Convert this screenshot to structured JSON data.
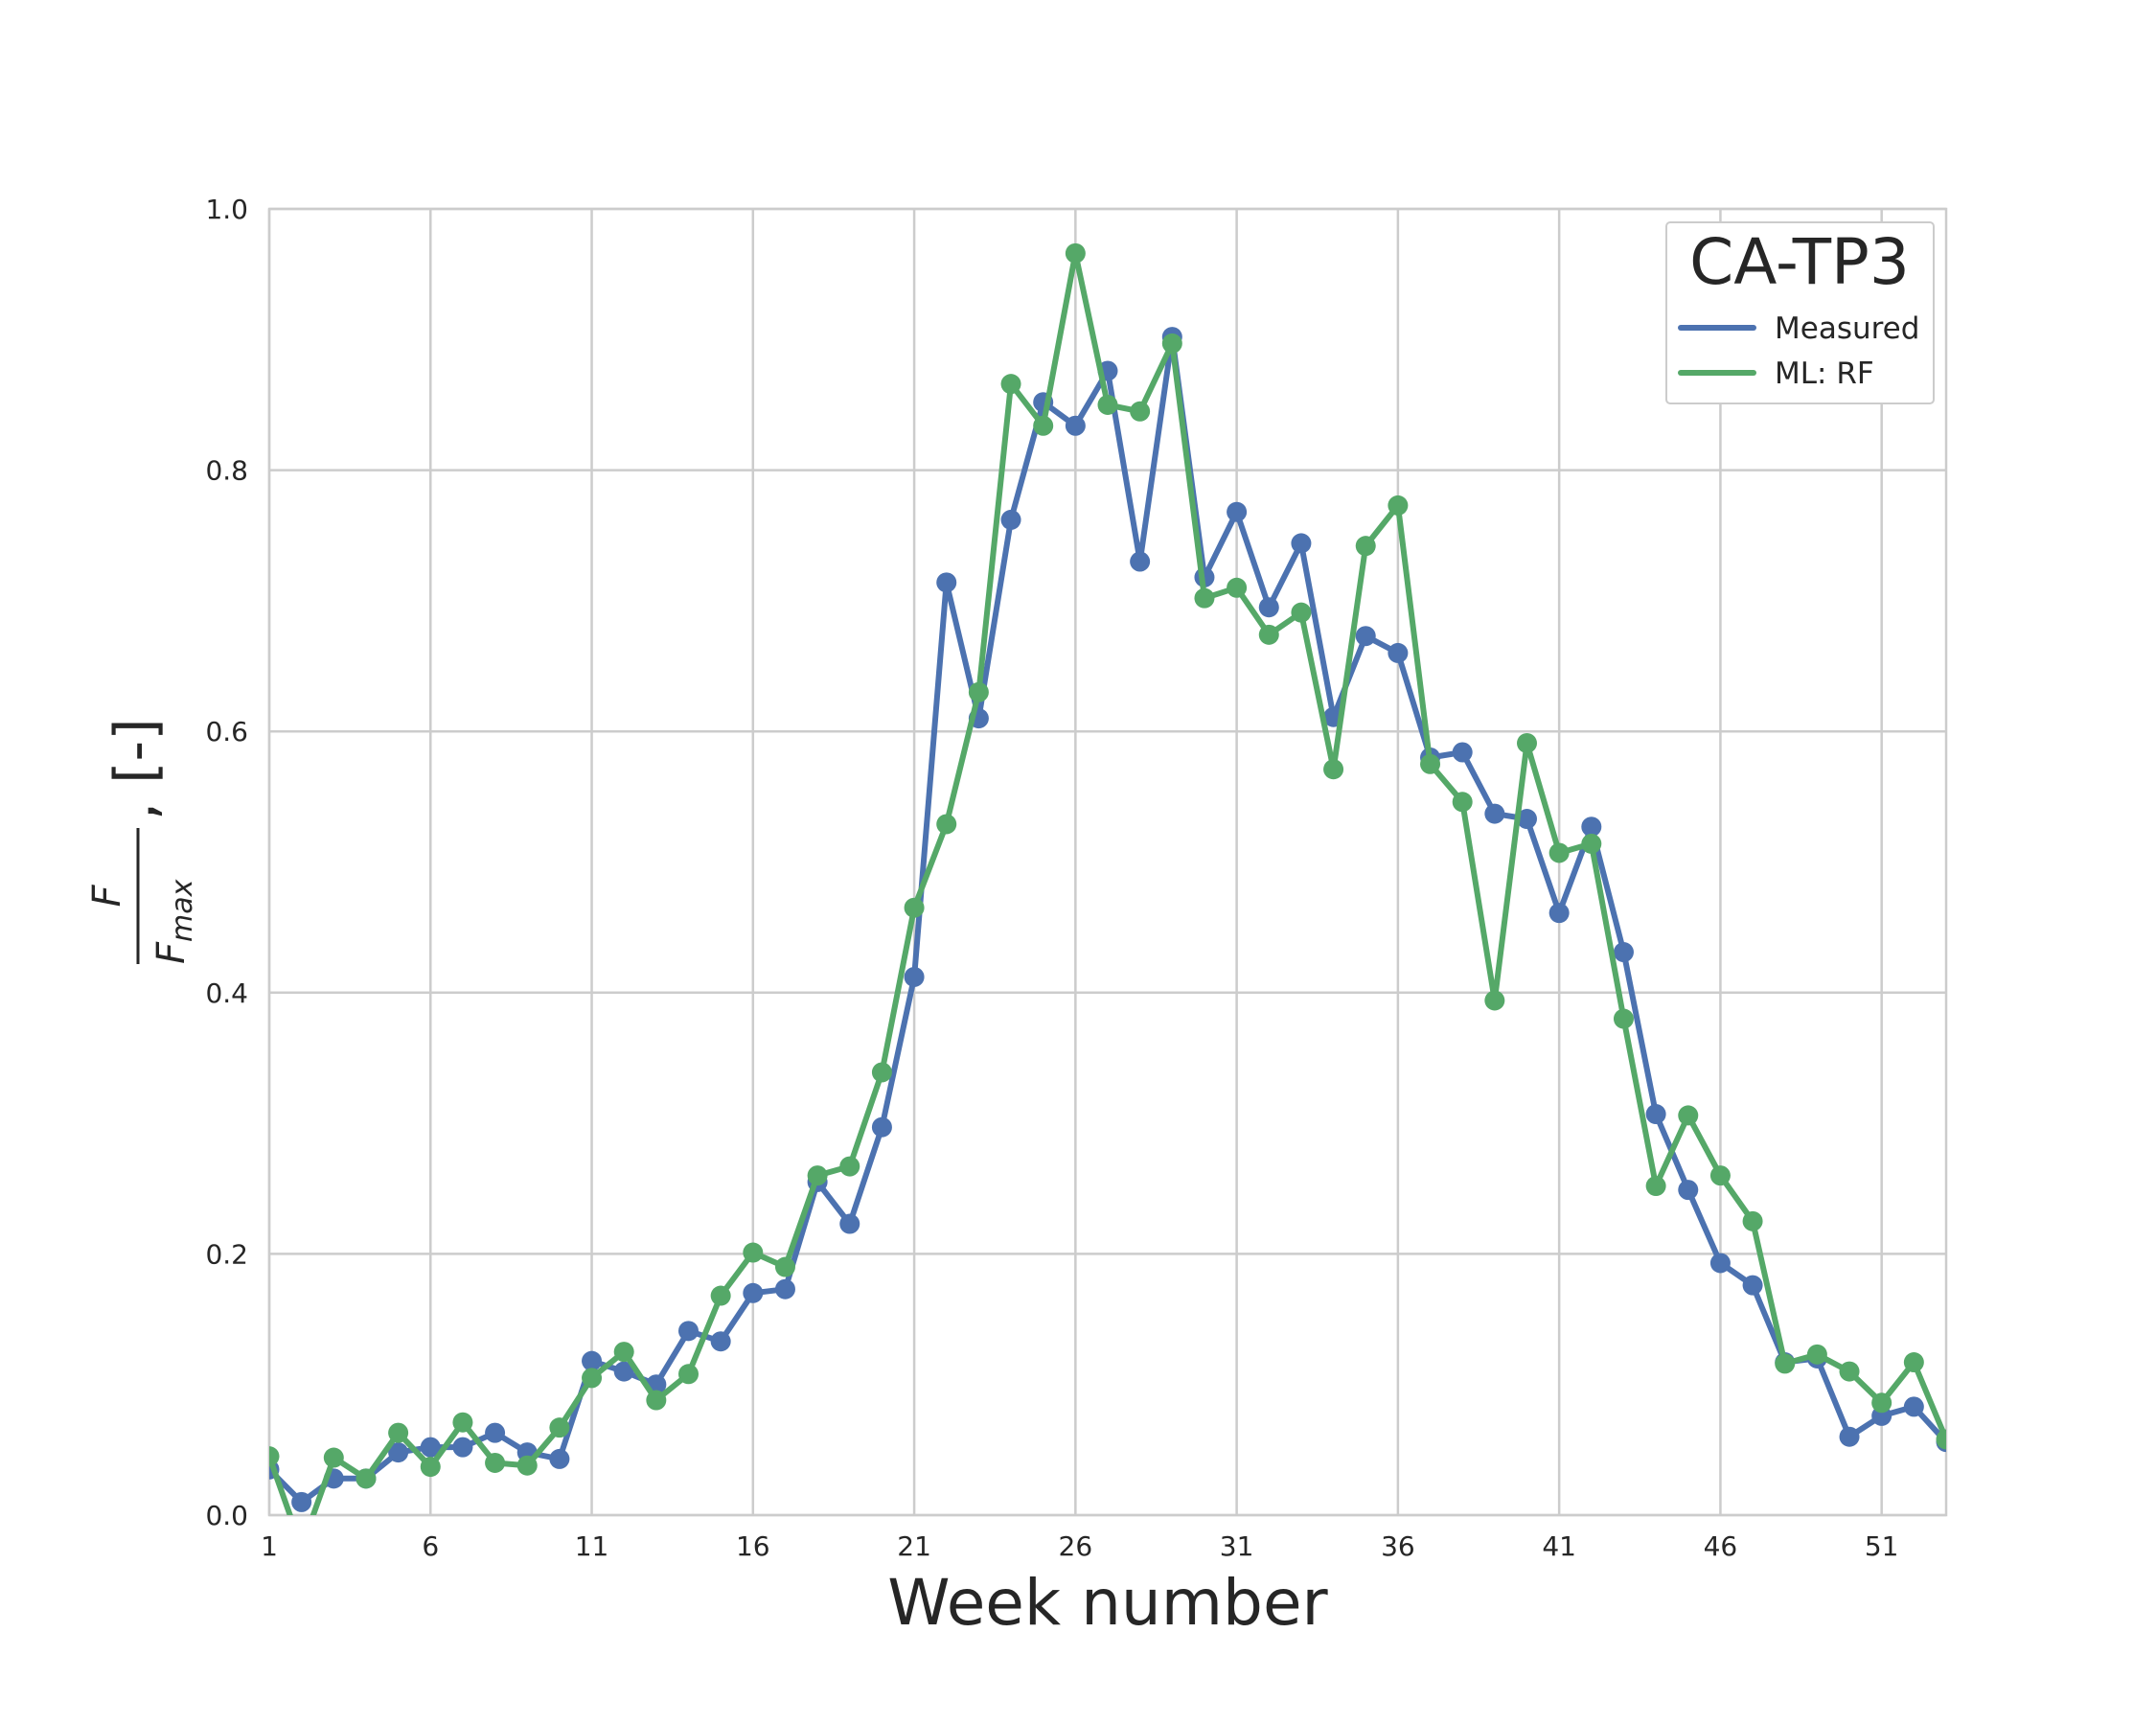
{
  "chart_data": {
    "type": "line",
    "title": "",
    "xlabel": "Week number",
    "ylabel": {
      "numerator": "F",
      "denominator_base": "F",
      "denominator_sub": "max",
      "suffix": ", [-]"
    },
    "xlim": [
      1,
      53
    ],
    "ylim": [
      0,
      1.0
    ],
    "xticks": [
      1,
      6,
      11,
      16,
      21,
      26,
      31,
      36,
      41,
      46,
      51
    ],
    "yticks": [
      0.0,
      0.2,
      0.4,
      0.6,
      0.8,
      1.0
    ],
    "ytick_labels": [
      "0.0",
      "0.2",
      "0.4",
      "0.6",
      "0.8",
      "1.0"
    ],
    "grid": true,
    "legend": {
      "title": "CA-TP3",
      "placement": "top-right"
    },
    "x": [
      1,
      2,
      3,
      4,
      5,
      6,
      7,
      8,
      9,
      10,
      11,
      12,
      13,
      14,
      15,
      16,
      17,
      18,
      19,
      20,
      21,
      22,
      23,
      24,
      25,
      26,
      27,
      28,
      29,
      30,
      31,
      32,
      33,
      34,
      35,
      36,
      37,
      38,
      39,
      40,
      41,
      42,
      43,
      44,
      45,
      46,
      47,
      48,
      49,
      50,
      51,
      52,
      53
    ],
    "series": [
      {
        "name": "Measured",
        "color": "#4c72b0",
        "values": [
          0.035,
          0.01,
          0.028,
          0.028,
          0.048,
          0.052,
          0.052,
          0.063,
          0.048,
          0.043,
          0.118,
          0.11,
          0.1,
          0.141,
          0.133,
          0.17,
          0.173,
          0.255,
          0.223,
          0.297,
          0.412,
          0.714,
          0.61,
          0.762,
          0.852,
          0.834,
          0.876,
          0.73,
          0.902,
          0.718,
          0.768,
          0.695,
          0.744,
          0.611,
          0.673,
          0.66,
          0.58,
          0.584,
          0.537,
          0.533,
          0.461,
          0.527,
          0.431,
          0.307,
          0.249,
          0.193,
          0.176,
          0.117,
          0.12,
          0.06,
          0.076,
          0.083,
          0.056
        ]
      },
      {
        "name": "ML: RF",
        "color": "#55a868",
        "values": [
          0.045,
          -0.025,
          0.044,
          0.028,
          0.063,
          0.037,
          0.071,
          0.04,
          0.038,
          0.067,
          0.105,
          0.125,
          0.088,
          0.108,
          0.168,
          0.201,
          0.19,
          0.26,
          0.267,
          0.339,
          0.465,
          0.529,
          0.63,
          0.866,
          0.834,
          0.966,
          0.85,
          0.845,
          0.897,
          0.702,
          0.71,
          0.674,
          0.691,
          0.571,
          0.742,
          0.773,
          0.575,
          0.546,
          0.394,
          0.591,
          0.507,
          0.514,
          0.38,
          0.252,
          0.306,
          0.26,
          0.225,
          0.116,
          0.123,
          0.11,
          0.086,
          0.117,
          0.058
        ]
      }
    ]
  }
}
